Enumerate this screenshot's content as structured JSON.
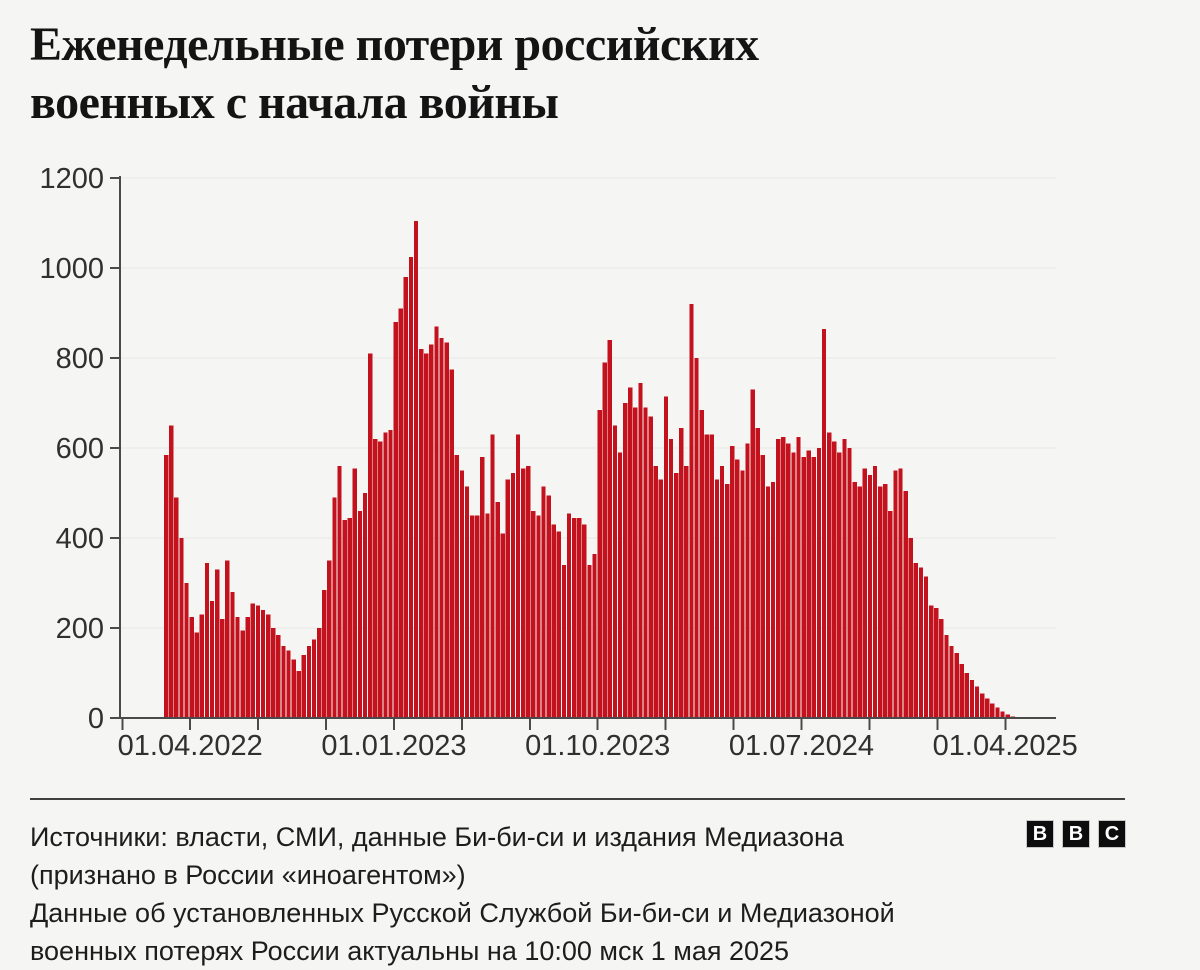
{
  "title": {
    "line1": "Еженедельные потери российских",
    "line2": "военных с начала войны"
  },
  "chart_data": {
    "type": "bar",
    "title": "Еженедельные потери российских военных с начала войны",
    "series_name": "weekly-russian-military-losses",
    "ylim": [
      0,
      1200
    ],
    "y_tick_labels": [
      "0",
      "200",
      "400",
      "600",
      "800",
      "1000",
      "1200"
    ],
    "x_tick_labels": [
      "01.04.2022",
      "01.01.2023",
      "01.10.2023",
      "01.07.2024",
      "01.04.2025"
    ],
    "x_minor_ticks": "quarterly, 14 ticks from 01.01.2022 to 01.04.2025",
    "grid": "horizontal",
    "legend": "none",
    "bar_color": "#c3111d",
    "values": [
      585,
      650,
      490,
      400,
      300,
      225,
      190,
      230,
      345,
      260,
      330,
      220,
      350,
      280,
      225,
      195,
      225,
      255,
      250,
      240,
      230,
      200,
      185,
      160,
      150,
      130,
      105,
      140,
      160,
      175,
      200,
      285,
      350,
      490,
      560,
      440,
      445,
      555,
      460,
      500,
      810,
      620,
      615,
      635,
      640,
      880,
      910,
      980,
      1025,
      1105,
      820,
      810,
      830,
      870,
      845,
      835,
      775,
      585,
      550,
      515,
      450,
      450,
      580,
      455,
      630,
      480,
      410,
      530,
      545,
      630,
      555,
      560,
      460,
      450,
      515,
      495,
      430,
      415,
      340,
      455,
      445,
      445,
      430,
      340,
      365,
      685,
      790,
      840,
      650,
      590,
      700,
      735,
      690,
      745,
      690,
      670,
      560,
      530,
      715,
      620,
      545,
      645,
      560,
      920,
      800,
      685,
      630,
      630,
      530,
      560,
      520,
      605,
      575,
      550,
      610,
      730,
      645,
      585,
      515,
      525,
      620,
      625,
      610,
      590,
      625,
      580,
      595,
      580,
      600,
      865,
      635,
      615,
      590,
      620,
      600,
      525,
      515,
      555,
      540,
      560,
      515,
      520,
      460,
      550,
      555,
      505,
      400,
      345,
      335,
      315,
      250,
      245,
      220,
      185,
      160,
      145,
      120,
      100,
      85,
      70,
      55,
      43,
      32,
      23,
      15,
      8,
      3
    ]
  },
  "footer": {
    "source_line1": "Источники: власти, СМИ, данные Би-би-си и издания Медиазона",
    "source_line2": "(признано в России «иноагентом»)",
    "note_line1": "Данные об установленных Русской Службой Би-би-си и Медиазоной",
    "note_line2": "военных потерях России актуальны на 10:00 мск 1 мая 2025",
    "logo_letters": [
      "B",
      "B",
      "C"
    ]
  },
  "colors": {
    "background": "#f5f5f3",
    "bar": "#c3111d",
    "axis": "#4a4a4a",
    "gridline": "#e8e8e6",
    "tick_label": "#303030",
    "title_text": "#141414",
    "footer_text": "#1d1d1d"
  }
}
